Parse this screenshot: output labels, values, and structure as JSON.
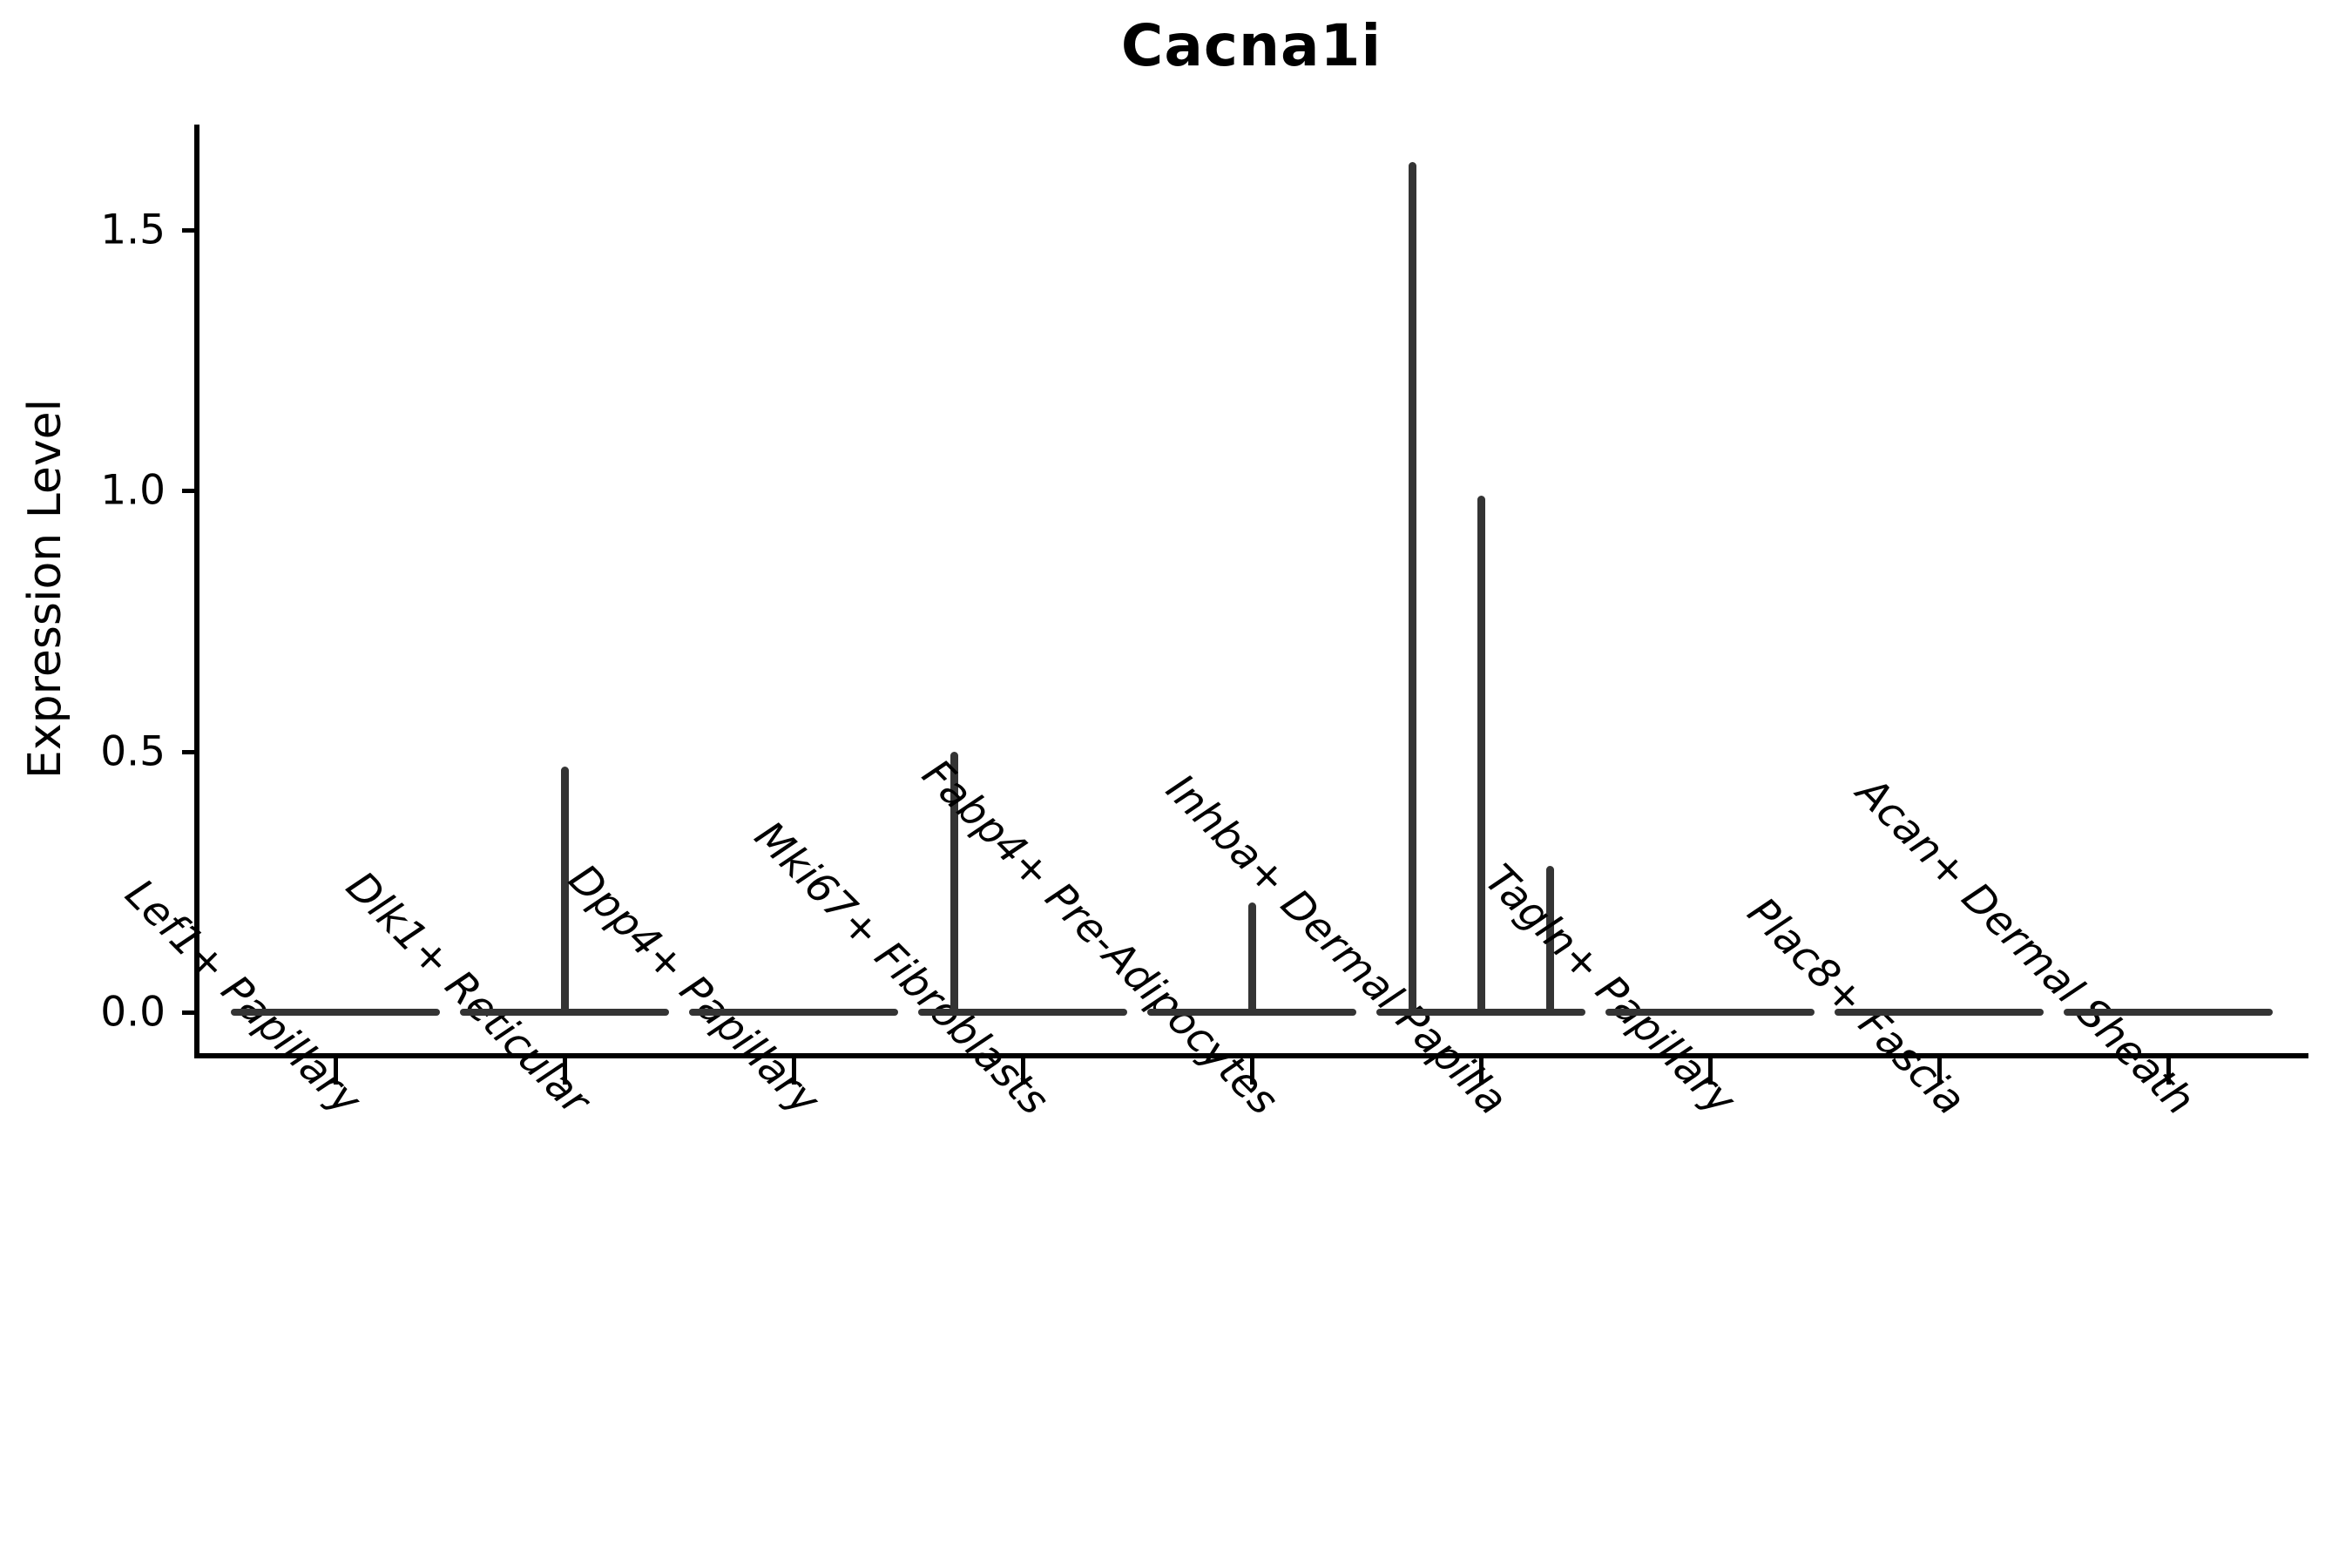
{
  "chart_data": {
    "type": "violin",
    "title": "Cacna1i",
    "xlabel": "",
    "ylabel": "Expression Level",
    "ylim": [
      0,
      1.7
    ],
    "yticks": [
      {
        "value": 0.0,
        "label": "0.0"
      },
      {
        "value": 0.5,
        "label": "0.5"
      },
      {
        "value": 1.0,
        "label": "1.0"
      },
      {
        "value": 1.5,
        "label": "1.5"
      }
    ],
    "categories": [
      "Lef1+ Papillary",
      "Dlk1+ Reticular",
      "Dpp4+ Papillary",
      "Mki67+ Fibroblasts",
      "Fabp4+ Pre-Adipocytes",
      "Inhba+ Dermal Papilla",
      "Tagln+ Papillary",
      "Plac8+ Fascia",
      "Acan+ Dermal Sheath"
    ],
    "series": [
      {
        "category": "Lef1+ Papillary",
        "baseline_value": 0.0,
        "spikes": []
      },
      {
        "category": "Dlk1+ Reticular",
        "baseline_value": 0.0,
        "spikes": [
          {
            "position": "center",
            "value": 0.47
          }
        ]
      },
      {
        "category": "Dpp4+ Papillary",
        "baseline_value": 0.0,
        "spikes": []
      },
      {
        "category": "Mki67+ Fibroblasts",
        "baseline_value": 0.0,
        "spikes": [
          {
            "position": "left",
            "value": 0.5
          }
        ]
      },
      {
        "category": "Fabp4+ Pre-Adipocytes",
        "baseline_value": 0.0,
        "spikes": [
          {
            "position": "center",
            "value": 0.21
          }
        ]
      },
      {
        "category": "Inhba+ Dermal Papilla",
        "baseline_value": 0.0,
        "spikes": [
          {
            "position": "left",
            "value": 1.63
          },
          {
            "position": "center",
            "value": 0.99
          },
          {
            "position": "right",
            "value": 0.28
          }
        ]
      },
      {
        "category": "Tagln+ Papillary",
        "baseline_value": 0.0,
        "spikes": []
      },
      {
        "category": "Plac8+ Fascia",
        "baseline_value": 0.0,
        "spikes": []
      },
      {
        "category": "Acan+ Dermal Sheath",
        "baseline_value": 0.0,
        "spikes": []
      }
    ],
    "colors": {
      "violin": "#343434",
      "axis": "#000000",
      "text": "#000000",
      "background": "#ffffff"
    },
    "grid": false,
    "legend_position": "none"
  }
}
